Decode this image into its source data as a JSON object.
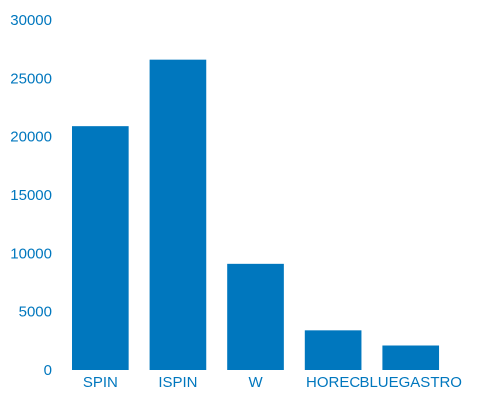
{
  "chart_data": {
    "type": "bar",
    "title": "",
    "xlabel": "",
    "ylabel": "",
    "categories": [
      "SPIN",
      "ISPIN",
      "W",
      "HOREC",
      "BLUEGASTRO"
    ],
    "values": [
      20900,
      26600,
      9100,
      3400,
      2100
    ],
    "ylim": [
      0,
      30000
    ],
    "yticks": [
      "0",
      "5000",
      "10000",
      "15000",
      "20000",
      "25000",
      "30000"
    ],
    "grid": false,
    "legend": "none",
    "colors": {
      "bar": "#0077BE",
      "text": "#0077BE",
      "background": "#FFFFFF"
    }
  }
}
